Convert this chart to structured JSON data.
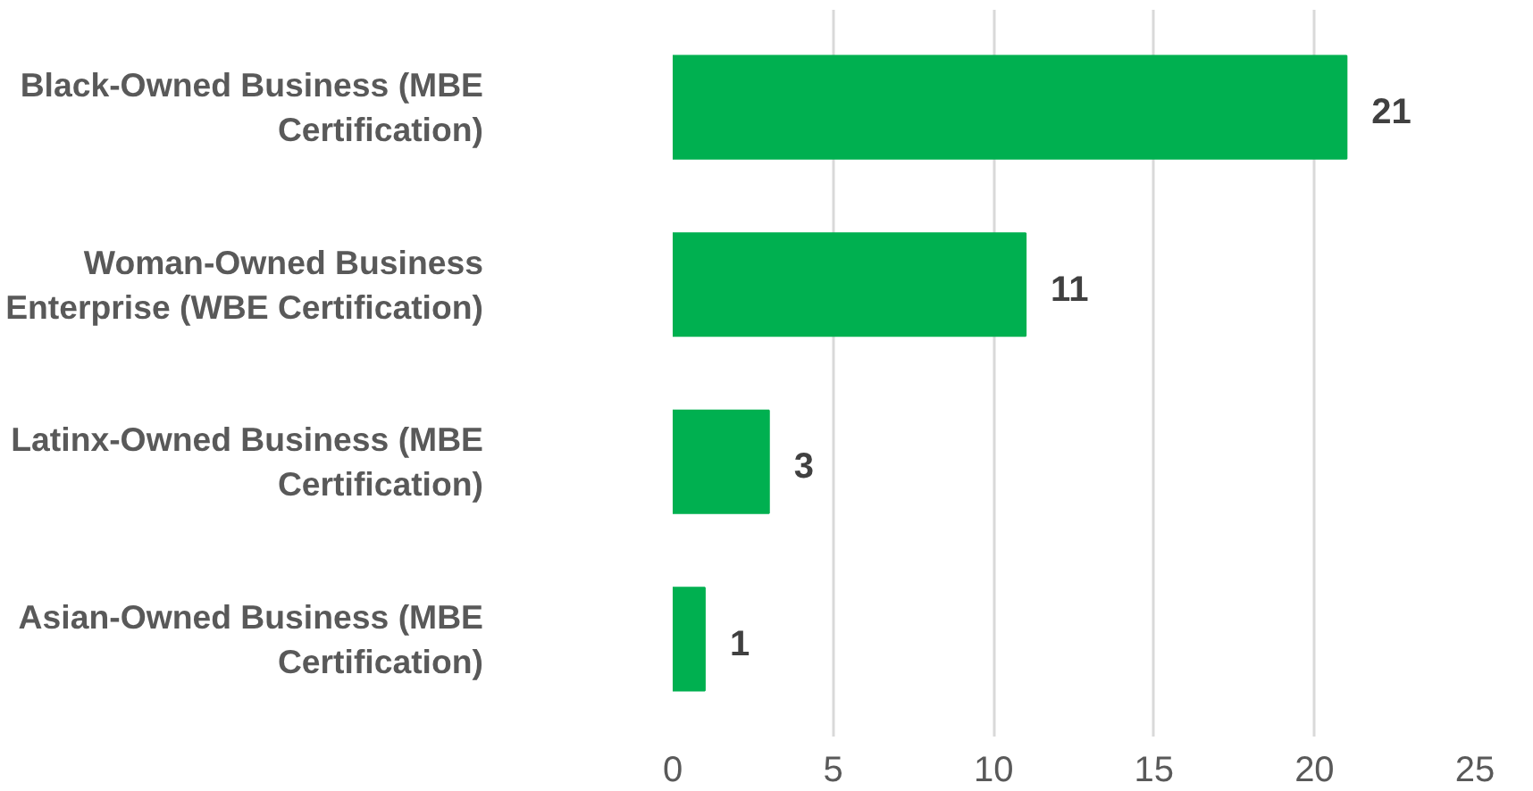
{
  "chart_data": {
    "type": "bar",
    "orientation": "horizontal",
    "categories": [
      "Black-Owned Business (MBE Certification)",
      "Woman-Owned Business Enterprise (WBE Certification)",
      "Latinx-Owned Business (MBE Certification)",
      "Asian-Owned Business (MBE Certification)"
    ],
    "values": [
      21,
      11,
      3,
      1
    ],
    "color": "#00b050",
    "data_labels": true,
    "xlim": [
      0,
      25
    ],
    "xticks": [
      0,
      5,
      10,
      15,
      20,
      25
    ],
    "grid": "x"
  }
}
